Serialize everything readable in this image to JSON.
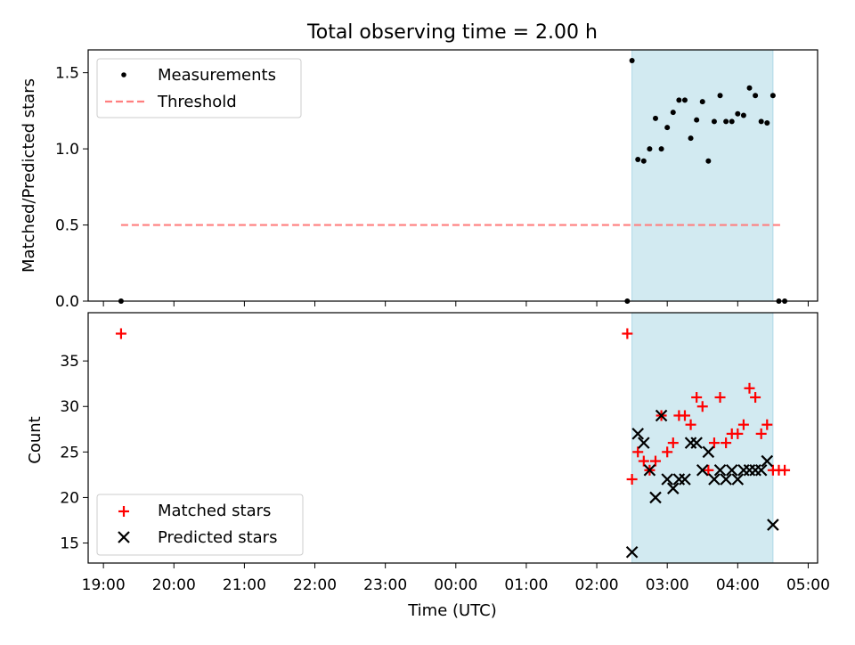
{
  "figure": {
    "title": "Total observing time = 2.00 h"
  },
  "chart_data": [
    {
      "type": "scatter",
      "panel": "top",
      "ylabel": "Matched/Predicted stars",
      "xlim": [
        "18:47",
        "05:08"
      ],
      "ylim": [
        0,
        1.65
      ],
      "yticks": [
        0.0,
        0.5,
        1.0,
        1.5
      ],
      "ytick_labels": [
        "0.0",
        "0.5",
        "1.0",
        "1.5"
      ],
      "xticks": [
        "19:00",
        "20:00",
        "21:00",
        "22:00",
        "23:00",
        "00:00",
        "01:00",
        "02:00",
        "03:00",
        "04:00",
        "05:00"
      ],
      "span": {
        "start": "02:30",
        "end": "04:30",
        "color": "#add8e6"
      },
      "threshold": {
        "name": "Threshold",
        "y": 0.5,
        "x_start": "19:15",
        "x_end": "04:38",
        "color": "#ff7f7f"
      },
      "series": [
        {
          "name": "Measurements",
          "marker": "dot",
          "color": "#000000",
          "points": [
            [
              "19:15",
              0.0
            ],
            [
              "02:26",
              0.0
            ],
            [
              "02:30",
              1.58
            ],
            [
              "02:35",
              0.93
            ],
            [
              "02:40",
              0.92
            ],
            [
              "02:45",
              1.0
            ],
            [
              "02:50",
              1.2
            ],
            [
              "02:55",
              1.0
            ],
            [
              "03:00",
              1.14
            ],
            [
              "03:05",
              1.24
            ],
            [
              "03:10",
              1.32
            ],
            [
              "03:15",
              1.32
            ],
            [
              "03:20",
              1.07
            ],
            [
              "03:25",
              1.19
            ],
            [
              "03:30",
              1.31
            ],
            [
              "03:35",
              0.92
            ],
            [
              "03:40",
              1.18
            ],
            [
              "03:45",
              1.35
            ],
            [
              "03:50",
              1.18
            ],
            [
              "03:55",
              1.18
            ],
            [
              "04:00",
              1.23
            ],
            [
              "04:05",
              1.22
            ],
            [
              "04:10",
              1.4
            ],
            [
              "04:15",
              1.35
            ],
            [
              "04:20",
              1.18
            ],
            [
              "04:25",
              1.17
            ],
            [
              "04:30",
              1.35
            ],
            [
              "04:35",
              0.0
            ],
            [
              "04:40",
              0.0
            ]
          ]
        }
      ],
      "legend": {
        "placement": "upper-left",
        "entries": [
          "Measurements",
          "Threshold"
        ]
      },
      "grid": false
    },
    {
      "type": "scatter",
      "panel": "bottom",
      "xlabel": "Time (UTC)",
      "ylabel": "Count",
      "xlim": [
        "18:47",
        "05:08"
      ],
      "ylim": [
        12.8,
        40.3
      ],
      "yticks": [
        15,
        20,
        25,
        30,
        35
      ],
      "xticks": [
        "19:00",
        "20:00",
        "21:00",
        "22:00",
        "23:00",
        "00:00",
        "01:00",
        "02:00",
        "03:00",
        "04:00",
        "05:00"
      ],
      "span": {
        "start": "02:30",
        "end": "04:30",
        "color": "#add8e6"
      },
      "series": [
        {
          "name": "Matched stars",
          "marker": "plus",
          "color": "#ff0000",
          "points": [
            [
              "19:15",
              38
            ],
            [
              "02:26",
              38
            ],
            [
              "02:30",
              22
            ],
            [
              "02:35",
              25
            ],
            [
              "02:40",
              24
            ],
            [
              "02:45",
              23
            ],
            [
              "02:50",
              24
            ],
            [
              "02:55",
              29
            ],
            [
              "03:00",
              25
            ],
            [
              "03:05",
              26
            ],
            [
              "03:10",
              29
            ],
            [
              "03:15",
              29
            ],
            [
              "03:20",
              28
            ],
            [
              "03:25",
              31
            ],
            [
              "03:30",
              30
            ],
            [
              "03:35",
              23
            ],
            [
              "03:40",
              26
            ],
            [
              "03:45",
              31
            ],
            [
              "03:50",
              26
            ],
            [
              "03:55",
              27
            ],
            [
              "04:00",
              27
            ],
            [
              "04:05",
              28
            ],
            [
              "04:10",
              32
            ],
            [
              "04:15",
              31
            ],
            [
              "04:20",
              27
            ],
            [
              "04:25",
              28
            ],
            [
              "04:30",
              23
            ],
            [
              "04:35",
              23
            ],
            [
              "04:40",
              23
            ]
          ]
        },
        {
          "name": "Predicted stars",
          "marker": "x",
          "color": "#000000",
          "points": [
            [
              "02:30",
              14
            ],
            [
              "02:35",
              27
            ],
            [
              "02:40",
              26
            ],
            [
              "02:45",
              23
            ],
            [
              "02:50",
              20
            ],
            [
              "02:55",
              29
            ],
            [
              "03:00",
              22
            ],
            [
              "03:05",
              21
            ],
            [
              "03:10",
              22
            ],
            [
              "03:15",
              22
            ],
            [
              "03:20",
              26
            ],
            [
              "03:25",
              26
            ],
            [
              "03:30",
              23
            ],
            [
              "03:35",
              25
            ],
            [
              "03:40",
              22
            ],
            [
              "03:45",
              23
            ],
            [
              "03:50",
              22
            ],
            [
              "03:55",
              23
            ],
            [
              "04:00",
              22
            ],
            [
              "04:05",
              23
            ],
            [
              "04:10",
              23
            ],
            [
              "04:15",
              23
            ],
            [
              "04:20",
              23
            ],
            [
              "04:25",
              24
            ],
            [
              "04:30",
              17
            ]
          ]
        }
      ],
      "legend": {
        "placement": "lower-left",
        "entries": [
          "Matched stars",
          "Predicted stars"
        ]
      },
      "grid": false
    }
  ]
}
